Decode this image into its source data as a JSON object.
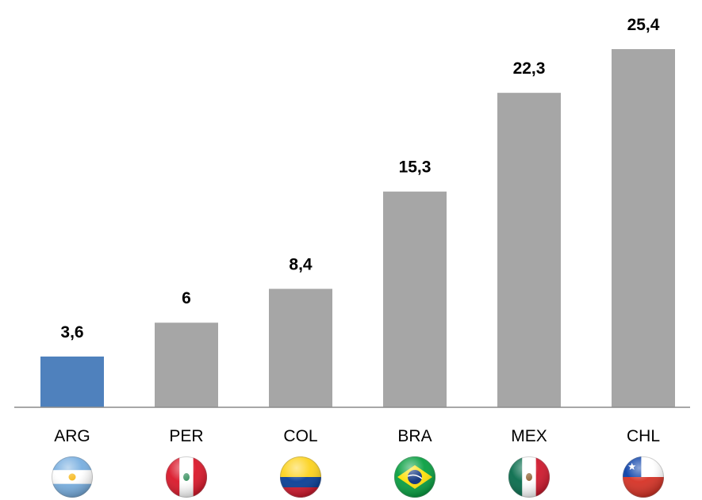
{
  "chart_data": {
    "type": "bar",
    "categories": [
      "ARG",
      "PER",
      "COL",
      "BRA",
      "MEX",
      "CHL"
    ],
    "values": [
      3.6,
      6,
      8.4,
      15.3,
      22.3,
      25.4
    ],
    "value_labels": [
      "3,6",
      "6",
      "8,4",
      "15,3",
      "22,3",
      "25,4"
    ],
    "title": "",
    "xlabel": "",
    "ylabel": "",
    "ylim": [
      0,
      25.4
    ],
    "grid": false,
    "legend": "none",
    "highlight_category": "ARG",
    "colors": {
      "highlight_bar": "#4f81bd",
      "default_bar": "#a6a6a6",
      "axis": "#8c8c8c"
    },
    "flags": [
      {
        "category": "ARG",
        "icon": "argentina-flag-icon"
      },
      {
        "category": "PER",
        "icon": "peru-flag-icon"
      },
      {
        "category": "COL",
        "icon": "colombia-flag-icon"
      },
      {
        "category": "BRA",
        "icon": "brazil-flag-icon"
      },
      {
        "category": "MEX",
        "icon": "mexico-flag-icon"
      },
      {
        "category": "CHL",
        "icon": "chile-flag-icon"
      }
    ]
  }
}
